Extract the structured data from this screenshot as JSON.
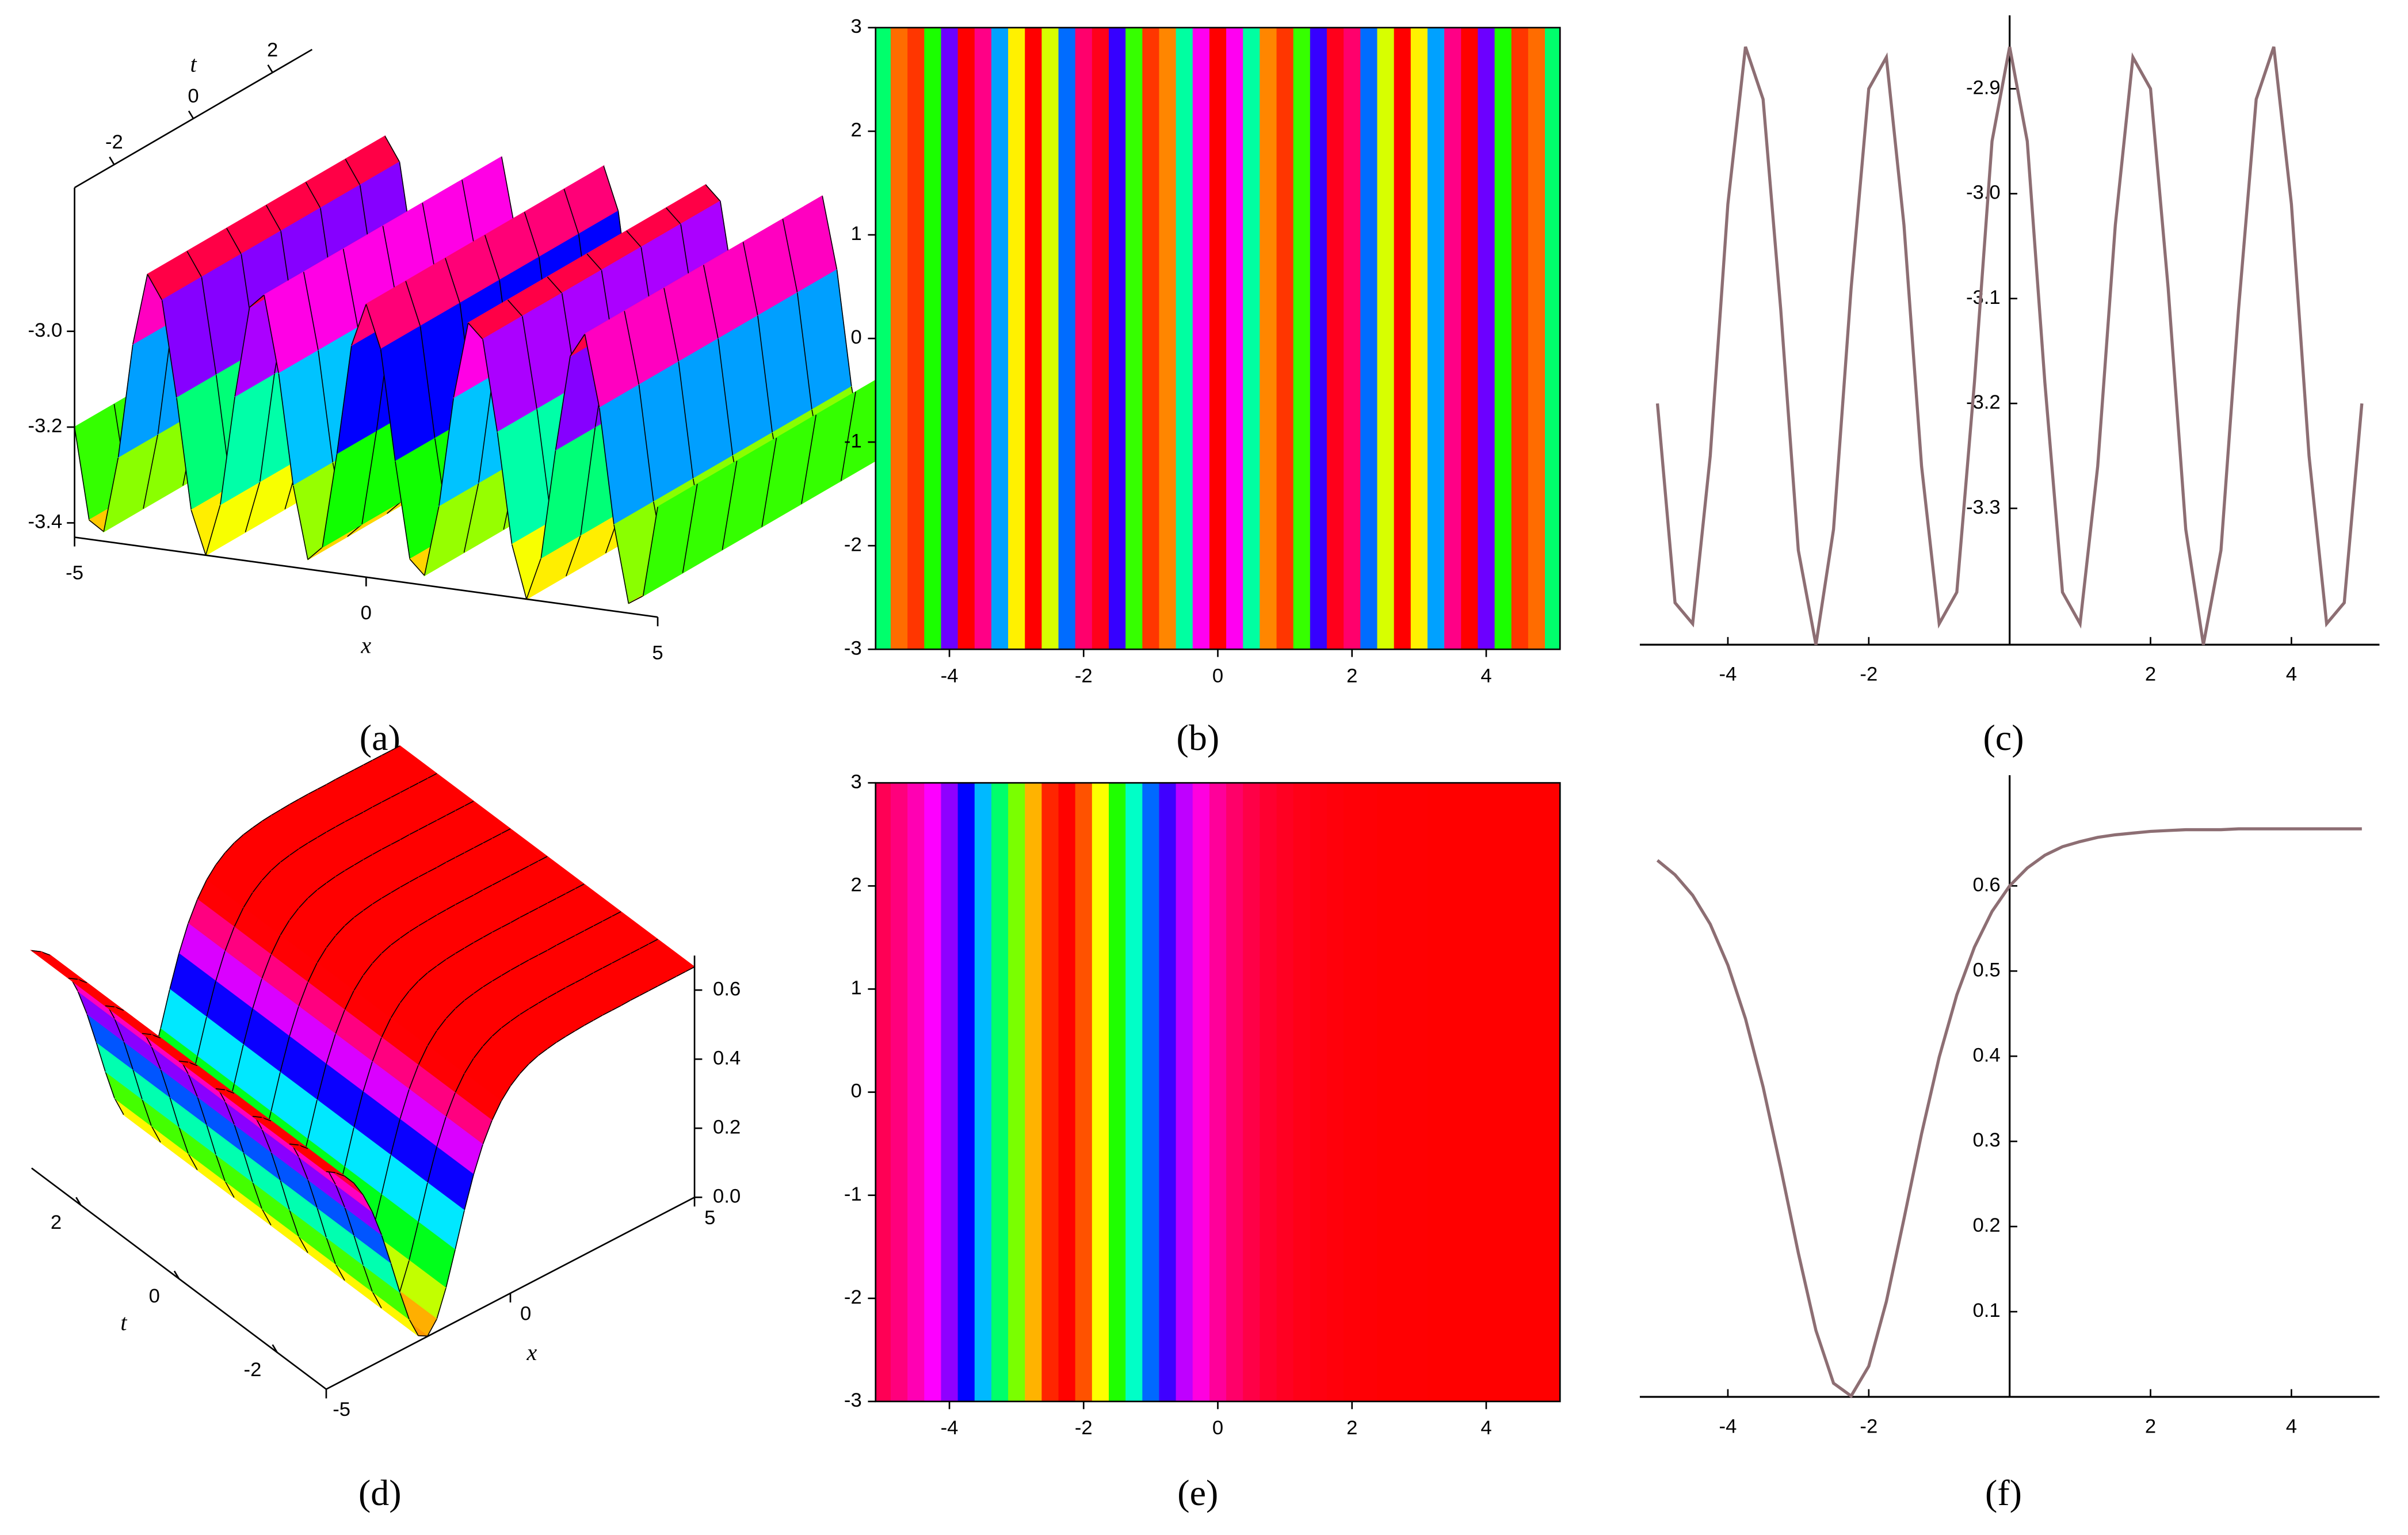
{
  "chart_data": [
    {
      "type": "surface3d",
      "caption": "(a)",
      "x_label": "x",
      "t_label": "t",
      "x": [
        -5,
        -4.75,
        -4.5,
        -4.25,
        -4,
        -3.75,
        -3.5,
        -3.25,
        -3,
        -2.75,
        -2.5,
        -2.25,
        -2,
        -1.75,
        -1.5,
        -1.25,
        -1,
        -0.75,
        -0.5,
        -0.25,
        0,
        0.25,
        0.5,
        0.75,
        1,
        1.25,
        1.5,
        1.75,
        2,
        2.25,
        2.5,
        2.75,
        3,
        3.25,
        3.5,
        3.75,
        4,
        4.25,
        4.5,
        4.75,
        5
      ],
      "values": [
        -3.2,
        -3.39,
        -3.41,
        -3.25,
        -3.01,
        -2.86,
        -2.91,
        -3.11,
        -3.34,
        -3.43,
        -3.32,
        -3.09,
        -2.9,
        -2.87,
        -3.03,
        -3.26,
        -3.41,
        -3.38,
        -3.18,
        -2.95,
        -2.86,
        -2.95,
        -3.18,
        -3.38,
        -3.41,
        -3.26,
        -3.03,
        -2.87,
        -2.9,
        -3.09,
        -3.32,
        -3.43,
        -3.34,
        -3.11,
        -2.91,
        -2.86,
        -3.01,
        -3.25,
        -3.41,
        -3.39,
        -3.2
      ],
      "xlim": [
        -5,
        5
      ],
      "xticks": [
        -5,
        0,
        5
      ],
      "tlim": [
        -3,
        3
      ],
      "tticks": [
        -2,
        0,
        2
      ],
      "zlim": [
        -3.43,
        -2.7
      ],
      "zticks": [
        {
          "value": -3,
          "label": "-3.0"
        },
        -3.2,
        -3.4
      ]
    },
    {
      "type": "density",
      "caption": "(b)",
      "x": [
        -5,
        -4.75,
        -4.5,
        -4.25,
        -4,
        -3.75,
        -3.5,
        -3.25,
        -3,
        -2.75,
        -2.5,
        -2.25,
        -2,
        -1.75,
        -1.5,
        -1.25,
        -1,
        -0.75,
        -0.5,
        -0.25,
        0,
        0.25,
        0.5,
        0.75,
        1,
        1.25,
        1.5,
        1.75,
        2,
        2.25,
        2.5,
        2.75,
        3,
        3.25,
        3.5,
        3.75,
        4,
        4.25,
        4.5,
        4.75,
        5
      ],
      "values": [
        -3.2,
        -3.39,
        -3.41,
        -3.25,
        -3.01,
        -2.86,
        -2.91,
        -3.11,
        -3.34,
        -3.43,
        -3.32,
        -3.09,
        -2.9,
        -2.87,
        -3.03,
        -3.26,
        -3.41,
        -3.38,
        -3.18,
        -2.95,
        -2.86,
        -2.95,
        -3.18,
        -3.38,
        -3.41,
        -3.26,
        -3.03,
        -2.87,
        -2.9,
        -3.09,
        -3.32,
        -3.43,
        -3.34,
        -3.11,
        -2.91,
        -2.86,
        -3.01,
        -3.25,
        -3.41,
        -3.39,
        -3.2
      ],
      "zlim": [
        -3.43,
        -2.86
      ],
      "xlim": [
        -5.1,
        5.1
      ],
      "xticks": [
        -4,
        -2,
        0,
        2,
        4
      ],
      "ylim": [
        -3,
        3
      ],
      "yticks": [
        -3,
        -2,
        -1,
        0,
        1,
        2,
        3
      ]
    },
    {
      "type": "line",
      "caption": "(c)",
      "color": "#8d6e73",
      "x": [
        -5,
        -4.75,
        -4.5,
        -4.25,
        -4,
        -3.75,
        -3.5,
        -3.25,
        -3,
        -2.75,
        -2.5,
        -2.25,
        -2,
        -1.75,
        -1.5,
        -1.25,
        -1,
        -0.75,
        -0.5,
        -0.25,
        0,
        0.25,
        0.5,
        0.75,
        1,
        1.25,
        1.5,
        1.75,
        2,
        2.25,
        2.5,
        2.75,
        3,
        3.25,
        3.5,
        3.75,
        4,
        4.25,
        4.5,
        4.75,
        5
      ],
      "values": [
        -3.2,
        -3.39,
        -3.41,
        -3.25,
        -3.01,
        -2.86,
        -2.91,
        -3.11,
        -3.34,
        -3.43,
        -3.32,
        -3.09,
        -2.9,
        -2.87,
        -3.03,
        -3.26,
        -3.41,
        -3.38,
        -3.18,
        -2.95,
        -2.86,
        -2.95,
        -3.18,
        -3.38,
        -3.41,
        -3.26,
        -3.03,
        -2.87,
        -2.9,
        -3.09,
        -3.32,
        -3.43,
        -3.34,
        -3.11,
        -2.91,
        -2.86,
        -3.01,
        -3.25,
        -3.41,
        -3.39,
        -3.2
      ],
      "xlim": [
        -5.25,
        5.25
      ],
      "xticks": [
        -4,
        -2,
        2,
        4
      ],
      "ylim": [
        -3.43,
        -2.83
      ],
      "yticks": [
        -2.9,
        {
          "value": -3,
          "label": "-3.0"
        },
        -3.1,
        -3.2,
        -3.3
      ]
    },
    {
      "type": "surface3d",
      "caption": "(d)",
      "x_label": "x",
      "t_label": "t",
      "x": [
        -5,
        -4.75,
        -4.5,
        -4.25,
        -4,
        -3.75,
        -3.5,
        -3.25,
        -3,
        -2.75,
        -2.5,
        -2.25,
        -2,
        -1.75,
        -1.5,
        -1.25,
        -1,
        -0.75,
        -0.5,
        -0.25,
        0,
        0.25,
        0.5,
        0.75,
        1,
        1.25,
        1.5,
        1.75,
        2,
        2.25,
        2.5,
        2.75,
        3,
        3.25,
        3.5,
        3.75,
        4,
        4.25,
        4.5,
        4.75,
        5
      ],
      "values": [
        0.63,
        0.613,
        0.589,
        0.555,
        0.507,
        0.444,
        0.364,
        0.269,
        0.169,
        0.078,
        0.016,
        0.001,
        0.036,
        0.112,
        0.209,
        0.309,
        0.399,
        0.472,
        0.528,
        0.57,
        0.6,
        0.621,
        0.636,
        0.646,
        0.652,
        0.657,
        0.66,
        0.662,
        0.664,
        0.665,
        0.666,
        0.666,
        0.666,
        0.667,
        0.667,
        0.667,
        0.667,
        0.667,
        0.667,
        0.667,
        0.667
      ],
      "xlim": [
        -5,
        5
      ],
      "xticks": [
        -5,
        0,
        5
      ],
      "tlim": [
        -3,
        3
      ],
      "tticks": [
        -2,
        0,
        2
      ],
      "zlim": [
        0,
        0.7
      ],
      "zticks": [
        {
          "value": 0,
          "label": "0.0"
        },
        0.2,
        0.4,
        0.6
      ]
    },
    {
      "type": "density",
      "caption": "(e)",
      "x": [
        -5,
        -4.75,
        -4.5,
        -4.25,
        -4,
        -3.75,
        -3.5,
        -3.25,
        -3,
        -2.75,
        -2.5,
        -2.25,
        -2,
        -1.75,
        -1.5,
        -1.25,
        -1,
        -0.75,
        -0.5,
        -0.25,
        0,
        0.25,
        0.5,
        0.75,
        1,
        1.25,
        1.5,
        1.75,
        2,
        2.25,
        2.5,
        2.75,
        3,
        3.25,
        3.5,
        3.75,
        4,
        4.25,
        4.5,
        4.75,
        5
      ],
      "values": [
        0.63,
        0.613,
        0.589,
        0.555,
        0.507,
        0.444,
        0.364,
        0.269,
        0.169,
        0.078,
        0.016,
        0.001,
        0.036,
        0.112,
        0.209,
        0.309,
        0.399,
        0.472,
        0.528,
        0.57,
        0.6,
        0.621,
        0.636,
        0.646,
        0.652,
        0.657,
        0.66,
        0.662,
        0.664,
        0.665,
        0.666,
        0.666,
        0.666,
        0.667,
        0.667,
        0.667,
        0.667,
        0.667,
        0.667,
        0.667,
        0.667
      ],
      "zlim": [
        0,
        0.667
      ],
      "xlim": [
        -5.1,
        5.1
      ],
      "xticks": [
        -4,
        -2,
        0,
        2,
        4
      ],
      "ylim": [
        -3,
        3
      ],
      "yticks": [
        -3,
        -2,
        -1,
        0,
        1,
        2,
        3
      ]
    },
    {
      "type": "line",
      "caption": "(f)",
      "color": "#8d6e73",
      "x": [
        -5,
        -4.75,
        -4.5,
        -4.25,
        -4,
        -3.75,
        -3.5,
        -3.25,
        -3,
        -2.75,
        -2.5,
        -2.25,
        -2,
        -1.75,
        -1.5,
        -1.25,
        -1,
        -0.75,
        -0.5,
        -0.25,
        0,
        0.25,
        0.5,
        0.75,
        1,
        1.25,
        1.5,
        1.75,
        2,
        2.25,
        2.5,
        2.75,
        3,
        3.25,
        3.5,
        3.75,
        4,
        4.25,
        4.5,
        4.75,
        5
      ],
      "values": [
        0.63,
        0.613,
        0.589,
        0.555,
        0.507,
        0.444,
        0.364,
        0.269,
        0.169,
        0.078,
        0.016,
        0.001,
        0.036,
        0.112,
        0.209,
        0.309,
        0.399,
        0.472,
        0.528,
        0.57,
        0.6,
        0.621,
        0.636,
        0.646,
        0.652,
        0.657,
        0.66,
        0.662,
        0.664,
        0.665,
        0.666,
        0.666,
        0.666,
        0.667,
        0.667,
        0.667,
        0.667,
        0.667,
        0.667,
        0.667,
        0.667
      ],
      "xlim": [
        -5.25,
        5.25
      ],
      "xticks": [
        -4,
        -2,
        2,
        4
      ],
      "ylim": [
        0,
        0.73
      ],
      "yticks": [
        0.1,
        0.2,
        0.3,
        0.4,
        0.5,
        0.6
      ]
    }
  ]
}
